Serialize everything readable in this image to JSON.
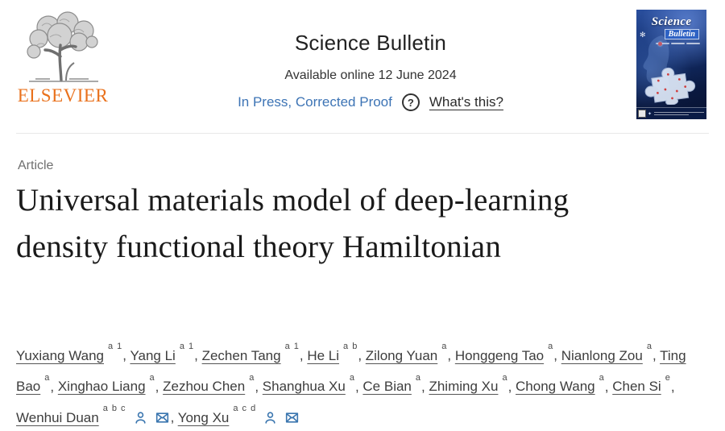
{
  "colors": {
    "orange": "#E9711C",
    "link_blue": "#3D74B5",
    "icon_blue": "#3B76AF",
    "title_ink": "#1A1A1A",
    "divider": "#E8E8E8"
  },
  "header": {
    "publisher_wordmark": "ELSEVIER",
    "journal_title": "Science Bulletin",
    "availability": "Available online 12 June 2024",
    "status": "In Press, Corrected Proof",
    "help_glyph": "?",
    "whats_this": "What's this?",
    "cover": {
      "title_line1": "Science",
      "title_line2": "Bulletin"
    }
  },
  "article": {
    "type_label": "Article",
    "title": "Universal materials model of deep-learning density functional theory Hamiltonian"
  },
  "authors": [
    {
      "name": "Yuxiang Wang",
      "sup": "a 1",
      "corresponding": false
    },
    {
      "name": "Yang Li",
      "sup": "a 1",
      "corresponding": false
    },
    {
      "name": "Zechen Tang",
      "sup": "a 1",
      "corresponding": false
    },
    {
      "name": "He Li",
      "sup": "a b",
      "corresponding": false
    },
    {
      "name": "Zilong Yuan",
      "sup": "a",
      "corresponding": false
    },
    {
      "name": "Honggeng Tao",
      "sup": "a",
      "corresponding": false
    },
    {
      "name": "Nianlong Zou",
      "sup": "a",
      "corresponding": false
    },
    {
      "name": "Ting Bao",
      "sup": "a",
      "corresponding": false
    },
    {
      "name": "Xinghao Liang",
      "sup": "a",
      "corresponding": false
    },
    {
      "name": "Zezhou Chen",
      "sup": "a",
      "corresponding": false
    },
    {
      "name": "Shanghua Xu",
      "sup": "a",
      "corresponding": false
    },
    {
      "name": "Ce Bian",
      "sup": "a",
      "corresponding": false
    },
    {
      "name": "Zhiming Xu",
      "sup": "a",
      "corresponding": false
    },
    {
      "name": "Chong Wang",
      "sup": "a",
      "corresponding": false
    },
    {
      "name": "Chen Si",
      "sup": "e",
      "corresponding": false
    },
    {
      "name": "Wenhui Duan",
      "sup": "a b c",
      "corresponding": true
    },
    {
      "name": "Yong Xu",
      "sup": "a c d",
      "corresponding": true
    }
  ]
}
